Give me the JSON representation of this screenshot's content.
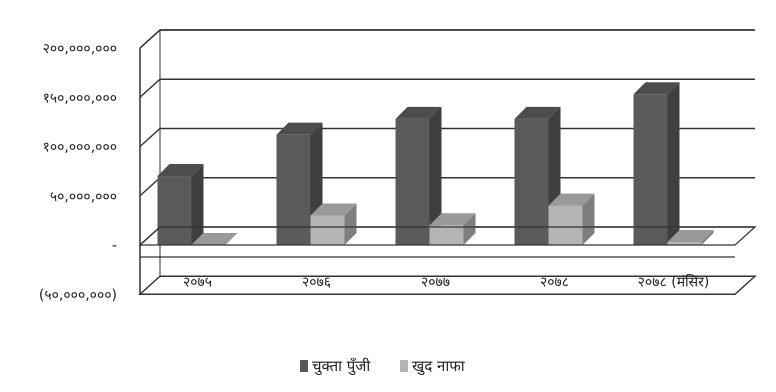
{
  "chart_data": {
    "type": "bar",
    "style": "3d-clustered-column",
    "categories": [
      "२०७५",
      "२०७६",
      "२०७७",
      "२०७८",
      "२०७८ (मंसिर)"
    ],
    "series": [
      {
        "name": "चुक्ता पुँजी",
        "values": [
          70000000,
          112000000,
          128000000,
          128000000,
          153000000
        ],
        "color": "#5a5a5a"
      },
      {
        "name": "खुद नाफा",
        "values": [
          0,
          30000000,
          20000000,
          40000000,
          3000000
        ],
        "color": "#b4b4b4"
      }
    ],
    "ylim": [
      -50000000,
      200000000
    ],
    "yticks": [
      {
        "value": 200000000,
        "label": "२००,०००,०००"
      },
      {
        "value": 150000000,
        "label": "१५०,०००,०००"
      },
      {
        "value": 100000000,
        "label": "१००,०००,०००"
      },
      {
        "value": 50000000,
        "label": "५०,०००,०००"
      },
      {
        "value": 0,
        "label": "-"
      },
      {
        "value": -50000000,
        "label": "(५०,०००,०००)"
      }
    ],
    "grid": true,
    "legend": "bottom",
    "title": "",
    "xlabel": "",
    "ylabel": ""
  }
}
